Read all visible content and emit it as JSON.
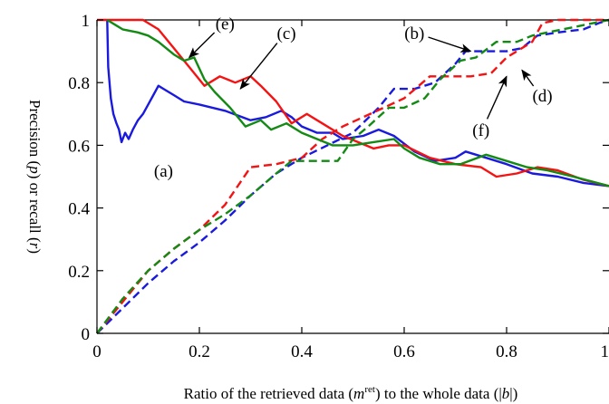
{
  "chart_data": {
    "type": "line",
    "title": "",
    "xlabel": {
      "prefix": "Ratio of the retrieved data (",
      "var": "m",
      "sup": "ret",
      "middle": ") to the whole data (|",
      "var2": "b",
      "suffix": "|)"
    },
    "ylabel": {
      "prefix": "Precision (",
      "var1": "p",
      "middle": ") or recall (",
      "var2": "r",
      "suffix": ")"
    },
    "xlim": [
      0,
      1
    ],
    "ylim": [
      0,
      1
    ],
    "xticks": [
      {
        "v": 0,
        "label": "0"
      },
      {
        "v": 0.2,
        "label": "0.2"
      },
      {
        "v": 0.4,
        "label": "0.4"
      },
      {
        "v": 0.6,
        "label": "0.6"
      },
      {
        "v": 0.8,
        "label": "0.8"
      },
      {
        "v": 1,
        "label": "1"
      }
    ],
    "yticks": [
      {
        "v": 0,
        "label": "0"
      },
      {
        "v": 0.2,
        "label": "0.2"
      },
      {
        "v": 0.4,
        "label": "0.4"
      },
      {
        "v": 0.6,
        "label": "0.6"
      },
      {
        "v": 0.8,
        "label": "0.8"
      },
      {
        "v": 1,
        "label": "1"
      }
    ],
    "grid": false,
    "series": [
      {
        "label": "(a)",
        "color": "#1a1adf",
        "dash": "solid",
        "points": [
          [
            0.02,
            1.0
          ],
          [
            0.022,
            0.85
          ],
          [
            0.027,
            0.75
          ],
          [
            0.032,
            0.7
          ],
          [
            0.038,
            0.67
          ],
          [
            0.043,
            0.65
          ],
          [
            0.048,
            0.61
          ],
          [
            0.055,
            0.64
          ],
          [
            0.062,
            0.62
          ],
          [
            0.07,
            0.65
          ],
          [
            0.08,
            0.68
          ],
          [
            0.09,
            0.7
          ],
          [
            0.1,
            0.73
          ],
          [
            0.11,
            0.76
          ],
          [
            0.12,
            0.79
          ],
          [
            0.13,
            0.78
          ],
          [
            0.15,
            0.76
          ],
          [
            0.17,
            0.74
          ],
          [
            0.2,
            0.73
          ],
          [
            0.25,
            0.71
          ],
          [
            0.3,
            0.68
          ],
          [
            0.33,
            0.69
          ],
          [
            0.36,
            0.71
          ],
          [
            0.38,
            0.69
          ],
          [
            0.4,
            0.66
          ],
          [
            0.43,
            0.64
          ],
          [
            0.46,
            0.64
          ],
          [
            0.48,
            0.62
          ],
          [
            0.52,
            0.63
          ],
          [
            0.55,
            0.65
          ],
          [
            0.58,
            0.63
          ],
          [
            0.62,
            0.58
          ],
          [
            0.66,
            0.55
          ],
          [
            0.7,
            0.56
          ],
          [
            0.72,
            0.58
          ],
          [
            0.76,
            0.56
          ],
          [
            0.8,
            0.54
          ],
          [
            0.85,
            0.51
          ],
          [
            0.9,
            0.5
          ],
          [
            0.95,
            0.48
          ],
          [
            1.0,
            0.47
          ]
        ]
      },
      {
        "label": "(b)",
        "color": "#1a1adf",
        "dash": "dashed",
        "points": [
          [
            0.0,
            0.0
          ],
          [
            0.05,
            0.08
          ],
          [
            0.1,
            0.16
          ],
          [
            0.15,
            0.23
          ],
          [
            0.2,
            0.29
          ],
          [
            0.25,
            0.36
          ],
          [
            0.3,
            0.44
          ],
          [
            0.35,
            0.51
          ],
          [
            0.4,
            0.56
          ],
          [
            0.45,
            0.6
          ],
          [
            0.5,
            0.64
          ],
          [
            0.55,
            0.72
          ],
          [
            0.58,
            0.78
          ],
          [
            0.62,
            0.78
          ],
          [
            0.66,
            0.8
          ],
          [
            0.7,
            0.86
          ],
          [
            0.72,
            0.9
          ],
          [
            0.76,
            0.9
          ],
          [
            0.8,
            0.9
          ],
          [
            0.83,
            0.91
          ],
          [
            0.86,
            0.95
          ],
          [
            0.9,
            0.96
          ],
          [
            0.95,
            0.97
          ],
          [
            0.98,
            0.99
          ],
          [
            1.0,
            1.0
          ]
        ]
      },
      {
        "label": "(c)",
        "color": "#f51212",
        "dash": "solid",
        "points": [
          [
            0.0,
            1.0
          ],
          [
            0.09,
            1.0
          ],
          [
            0.12,
            0.97
          ],
          [
            0.15,
            0.91
          ],
          [
            0.18,
            0.85
          ],
          [
            0.21,
            0.79
          ],
          [
            0.24,
            0.82
          ],
          [
            0.27,
            0.8
          ],
          [
            0.3,
            0.82
          ],
          [
            0.32,
            0.79
          ],
          [
            0.35,
            0.74
          ],
          [
            0.38,
            0.67
          ],
          [
            0.41,
            0.7
          ],
          [
            0.44,
            0.67
          ],
          [
            0.48,
            0.63
          ],
          [
            0.51,
            0.61
          ],
          [
            0.54,
            0.59
          ],
          [
            0.57,
            0.6
          ],
          [
            0.6,
            0.6
          ],
          [
            0.65,
            0.56
          ],
          [
            0.7,
            0.54
          ],
          [
            0.75,
            0.53
          ],
          [
            0.78,
            0.5
          ],
          [
            0.82,
            0.51
          ],
          [
            0.86,
            0.53
          ],
          [
            0.9,
            0.52
          ],
          [
            0.95,
            0.49
          ],
          [
            1.0,
            0.47
          ]
        ]
      },
      {
        "label": "(d)",
        "color": "#f51212",
        "dash": "dashed",
        "points": [
          [
            0.0,
            0.0
          ],
          [
            0.05,
            0.1
          ],
          [
            0.1,
            0.2
          ],
          [
            0.15,
            0.27
          ],
          [
            0.2,
            0.33
          ],
          [
            0.25,
            0.41
          ],
          [
            0.3,
            0.53
          ],
          [
            0.35,
            0.54
          ],
          [
            0.4,
            0.56
          ],
          [
            0.44,
            0.62
          ],
          [
            0.48,
            0.66
          ],
          [
            0.52,
            0.69
          ],
          [
            0.56,
            0.72
          ],
          [
            0.6,
            0.75
          ],
          [
            0.65,
            0.82
          ],
          [
            0.7,
            0.82
          ],
          [
            0.73,
            0.82
          ],
          [
            0.77,
            0.83
          ],
          [
            0.8,
            0.88
          ],
          [
            0.85,
            0.93
          ],
          [
            0.87,
            0.99
          ],
          [
            0.9,
            1.0
          ],
          [
            1.0,
            1.0
          ]
        ]
      },
      {
        "label": "(e)",
        "color": "#138a13",
        "dash": "solid",
        "points": [
          [
            0.02,
            1.0
          ],
          [
            0.05,
            0.97
          ],
          [
            0.08,
            0.96
          ],
          [
            0.1,
            0.95
          ],
          [
            0.12,
            0.93
          ],
          [
            0.15,
            0.89
          ],
          [
            0.17,
            0.87
          ],
          [
            0.19,
            0.88
          ],
          [
            0.21,
            0.81
          ],
          [
            0.23,
            0.77
          ],
          [
            0.26,
            0.72
          ],
          [
            0.29,
            0.66
          ],
          [
            0.32,
            0.68
          ],
          [
            0.34,
            0.65
          ],
          [
            0.37,
            0.67
          ],
          [
            0.4,
            0.64
          ],
          [
            0.43,
            0.62
          ],
          [
            0.46,
            0.6
          ],
          [
            0.5,
            0.6
          ],
          [
            0.54,
            0.61
          ],
          [
            0.58,
            0.62
          ],
          [
            0.6,
            0.59
          ],
          [
            0.63,
            0.56
          ],
          [
            0.67,
            0.54
          ],
          [
            0.71,
            0.54
          ],
          [
            0.76,
            0.57
          ],
          [
            0.8,
            0.55
          ],
          [
            0.84,
            0.53
          ],
          [
            0.88,
            0.52
          ],
          [
            0.93,
            0.5
          ],
          [
            1.0,
            0.47
          ]
        ]
      },
      {
        "label": "(f)",
        "color": "#138a13",
        "dash": "dashed",
        "points": [
          [
            0.0,
            0.0
          ],
          [
            0.05,
            0.11
          ],
          [
            0.1,
            0.2
          ],
          [
            0.15,
            0.27
          ],
          [
            0.2,
            0.33
          ],
          [
            0.25,
            0.38
          ],
          [
            0.3,
            0.44
          ],
          [
            0.35,
            0.51
          ],
          [
            0.38,
            0.55
          ],
          [
            0.44,
            0.55
          ],
          [
            0.47,
            0.55
          ],
          [
            0.5,
            0.62
          ],
          [
            0.53,
            0.66
          ],
          [
            0.57,
            0.72
          ],
          [
            0.6,
            0.72
          ],
          [
            0.64,
            0.75
          ],
          [
            0.67,
            0.81
          ],
          [
            0.71,
            0.87
          ],
          [
            0.74,
            0.88
          ],
          [
            0.78,
            0.93
          ],
          [
            0.82,
            0.93
          ],
          [
            0.85,
            0.95
          ],
          [
            0.88,
            0.96
          ],
          [
            0.94,
            0.98
          ],
          [
            1.0,
            1.0
          ]
        ]
      }
    ],
    "annotations": [
      {
        "text": "(a)",
        "x": 0.13,
        "y": 0.5,
        "arrow": false
      },
      {
        "text": "(e)",
        "x": 0.25,
        "y": 0.97,
        "arrow": true,
        "target": [
          0.18,
          0.88
        ]
      },
      {
        "text": "(c)",
        "x": 0.37,
        "y": 0.94,
        "arrow": true,
        "target": [
          0.28,
          0.78
        ]
      },
      {
        "text": "(b)",
        "x": 0.62,
        "y": 0.94,
        "arrow": true,
        "target": [
          0.73,
          0.9
        ]
      },
      {
        "text": "(f)",
        "x": 0.75,
        "y": 0.63,
        "arrow": true,
        "target": [
          0.8,
          0.82
        ]
      },
      {
        "text": "(d)",
        "x": 0.87,
        "y": 0.74,
        "arrow": true,
        "target": [
          0.83,
          0.84
        ]
      }
    ]
  }
}
